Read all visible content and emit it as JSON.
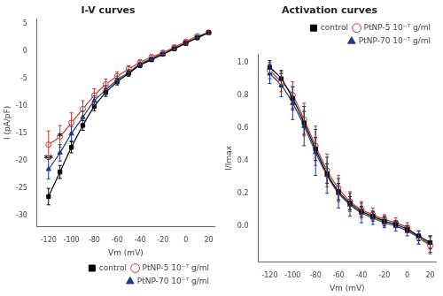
{
  "chart_data": [
    {
      "type": "line",
      "title": "I-V curves",
      "x_label": "Vm (mV)",
      "y_label": "I (pA/pF)",
      "x": [
        -120,
        -110,
        -100,
        -90,
        -80,
        -70,
        -60,
        -50,
        -40,
        -30,
        -20,
        -10,
        0,
        10,
        20
      ],
      "series": [
        {
          "name": "control",
          "color": "#000000",
          "marker": "square",
          "values": [
            -26.5,
            -22.0,
            -17.5,
            -13.5,
            -10.0,
            -7.5,
            -5.5,
            -4.0,
            -2.5,
            -1.5,
            -0.5,
            0.5,
            1.5,
            2.5,
            3.5
          ],
          "errors": [
            1.5,
            1.2,
            1.0,
            0.9,
            0.8,
            0.7,
            0.6,
            0.5,
            0.4,
            0.3,
            0.3,
            0.3,
            0.3,
            0.3,
            0.3
          ]
        },
        {
          "name": "PtNP-5 10⁻⁷ g/ml",
          "color": "#c0392b",
          "marker": "open-circle",
          "values": [
            -17.0,
            -15.5,
            -13.0,
            -10.5,
            -8.0,
            -6.0,
            -4.5,
            -3.2,
            -2.0,
            -1.0,
            -0.2,
            0.8,
            1.8,
            2.8,
            3.5
          ],
          "errors": [
            2.5,
            2.0,
            1.8,
            1.5,
            1.2,
            1.0,
            0.8,
            0.6,
            0.5,
            0.4,
            0.3,
            0.3,
            0.3,
            0.3,
            0.3
          ]
        },
        {
          "name": "PtNP-70 10⁻⁷ g/ml",
          "color": "#1a3a8a",
          "marker": "triangle",
          "values": [
            -21.5,
            -18.5,
            -15.0,
            -12.0,
            -9.0,
            -7.0,
            -5.2,
            -3.8,
            -2.3,
            -1.3,
            -0.4,
            0.6,
            1.6,
            2.6,
            3.4
          ],
          "errors": [
            1.8,
            1.5,
            1.3,
            1.1,
            0.9,
            0.8,
            0.7,
            0.5,
            0.4,
            0.3,
            0.3,
            0.3,
            0.3,
            0.3,
            0.3
          ]
        }
      ],
      "xlim": [
        -130,
        25
      ],
      "xticks": [
        -120,
        -100,
        -80,
        -60,
        -40,
        -20,
        0,
        20
      ],
      "ylim": [
        -32,
        6
      ],
      "yticks": [
        -30,
        -25,
        -20,
        -15,
        -10,
        -5,
        0,
        5
      ],
      "grid": false,
      "legend": "lower right",
      "annotations": [
        {
          "text": "**",
          "x": -120,
          "y": -20.5
        },
        {
          "text": "*",
          "x": -110,
          "y": -16.5
        }
      ]
    },
    {
      "type": "line",
      "title": "Activation curves",
      "x_label": "Vm (mV)",
      "y_label": "I/Imax",
      "x": [
        -120,
        -110,
        -100,
        -90,
        -80,
        -70,
        -60,
        -50,
        -40,
        -30,
        -20,
        -10,
        0,
        10,
        20
      ],
      "series": [
        {
          "name": "control",
          "color": "#000000",
          "marker": "square",
          "values": [
            0.97,
            0.9,
            0.78,
            0.63,
            0.47,
            0.32,
            0.21,
            0.14,
            0.09,
            0.06,
            0.03,
            0.01,
            -0.02,
            -0.06,
            -0.1
          ],
          "errors": [
            0.04,
            0.05,
            0.07,
            0.07,
            0.07,
            0.06,
            0.05,
            0.04,
            0.03,
            0.03,
            0.03,
            0.02,
            0.02,
            0.03,
            0.04
          ]
        },
        {
          "name": "PtNP-5 10⁻⁷ g/ml",
          "color": "#c0392b",
          "marker": "open-circle",
          "values": [
            0.95,
            0.88,
            0.8,
            0.65,
            0.49,
            0.34,
            0.23,
            0.15,
            0.1,
            0.07,
            0.04,
            0.02,
            -0.01,
            -0.07,
            -0.12
          ],
          "errors": [
            0.05,
            0.06,
            0.08,
            0.1,
            0.12,
            0.1,
            0.08,
            0.06,
            0.05,
            0.04,
            0.03,
            0.03,
            0.03,
            0.04,
            0.05
          ]
        },
        {
          "name": "PtNP-70 10⁻⁷ g/ml",
          "color": "#1a3a8a",
          "marker": "triangle",
          "values": [
            0.93,
            0.86,
            0.75,
            0.61,
            0.45,
            0.31,
            0.2,
            0.13,
            0.08,
            0.05,
            0.02,
            0.0,
            -0.03,
            -0.07,
            -0.11
          ],
          "errors": [
            0.06,
            0.07,
            0.1,
            0.12,
            0.14,
            0.11,
            0.09,
            0.07,
            0.06,
            0.04,
            0.03,
            0.03,
            0.03,
            0.04,
            0.05
          ]
        }
      ],
      "xlim": [
        -130,
        25
      ],
      "xticks": [
        -120,
        -100,
        -80,
        -60,
        -40,
        -20,
        0,
        20
      ],
      "ylim": [
        -0.22,
        1.05
      ],
      "yticks": [
        {
          "value": 0.0,
          "label": "0.0"
        },
        0.2,
        0.4,
        0.6,
        0.8,
        {
          "value": 1.0,
          "label": "1.0"
        }
      ],
      "grid": false,
      "legend": "upper right"
    }
  ]
}
